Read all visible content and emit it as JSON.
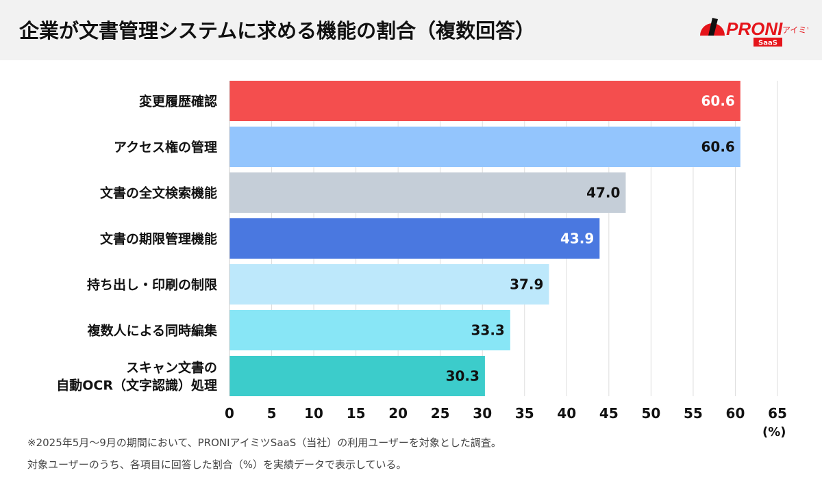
{
  "header": {
    "title": "企業が文書管理システムに求める機能の割合（複数回答）",
    "logo": {
      "brand": "PRONI",
      "sub": "アイミツ",
      "badge": "SaaS",
      "brand_color": "#e5151b"
    }
  },
  "chart_data": {
    "type": "bar",
    "orientation": "horizontal",
    "categories": [
      "変更履歴確認",
      "アクセス権の管理",
      "文書の全文検索機能",
      "文書の期限管理機能",
      "持ち出し・印刷の制限",
      "複数人による同時編集",
      "スキャン文書の\n自動OCR（文字認識）処理"
    ],
    "values": [
      60.6,
      60.6,
      47.0,
      43.9,
      37.9,
      33.3,
      30.3
    ],
    "value_labels": [
      "60.6",
      "60.6",
      "47.0",
      "43.9",
      "37.9",
      "33.3",
      "30.3"
    ],
    "colors": [
      "#f44e4e",
      "#93c5fd",
      "#c5ced8",
      "#4a78e0",
      "#bde8fb",
      "#88e6f6",
      "#3ccccb"
    ],
    "label_colors": [
      "#ffffff",
      "#111111",
      "#111111",
      "#ffffff",
      "#111111",
      "#111111",
      "#111111"
    ],
    "xlim": [
      0,
      65
    ],
    "xticks": [
      "0",
      "5",
      "10",
      "15",
      "20",
      "25",
      "30",
      "35",
      "40",
      "45",
      "50",
      "55",
      "60",
      "65"
    ],
    "xunit": "(%)",
    "grid": true
  },
  "footnotes": [
    "※2025年5月〜9月の期間において、PRONIアイミツSaaS（当社）の利用ユーザーを対象とした調査。",
    "対象ユーザーのうち、各項目に回答した割合（%）を実績データで表示している。"
  ]
}
